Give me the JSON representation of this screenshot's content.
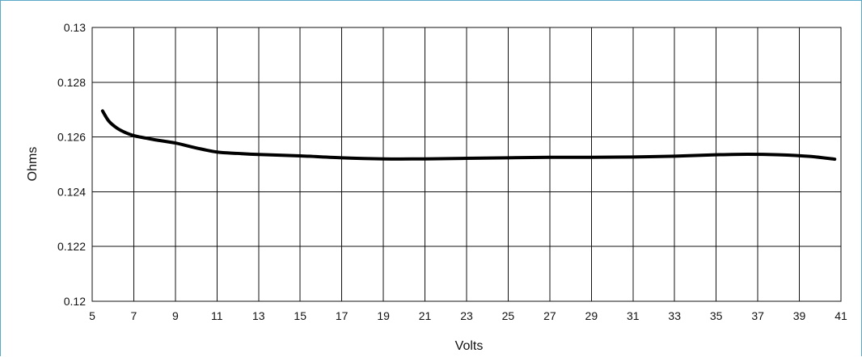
{
  "chart_data": {
    "type": "line",
    "title": "",
    "xlabel": "Volts",
    "ylabel": "Ohms",
    "xlim": [
      5,
      41
    ],
    "ylim": [
      0.12,
      0.13
    ],
    "x_ticks": [
      5,
      7,
      9,
      11,
      13,
      15,
      17,
      19,
      21,
      23,
      25,
      27,
      29,
      31,
      33,
      35,
      37,
      39,
      41
    ],
    "x_tick_labels": [
      "5",
      "7",
      "9",
      "11",
      "13",
      "15",
      "17",
      "19",
      "21",
      "23",
      "25",
      "27",
      "29",
      "31",
      "33",
      "35",
      "37",
      "39",
      "41"
    ],
    "y_ticks": [
      0.12,
      0.122,
      0.124,
      0.126,
      0.128,
      0.13
    ],
    "y_tick_labels": [
      "0.12",
      "0.122",
      "0.124",
      "0.126",
      "0.128",
      "0.13"
    ],
    "grid": true,
    "legend": "none",
    "series": [
      {
        "x": [
          5.5,
          5.8,
          6.2,
          6.6,
          7.0,
          7.5,
          8.0,
          9.0,
          10.0,
          11.0,
          12.0,
          13.0,
          15.0,
          17.0,
          19.0,
          21.0,
          23.0,
          25.0,
          27.0,
          29.0,
          31.0,
          33.0,
          35.0,
          36.5,
          38.0,
          39.5,
          40.7
        ],
        "y": [
          0.12695,
          0.12658,
          0.12632,
          0.12616,
          0.12605,
          0.12597,
          0.1259,
          0.12578,
          0.1256,
          0.12545,
          0.1254,
          0.12536,
          0.12531,
          0.12524,
          0.1252,
          0.1252,
          0.12522,
          0.12524,
          0.12526,
          0.12526,
          0.12527,
          0.1253,
          0.12535,
          0.12537,
          0.12535,
          0.12529,
          0.12519
        ],
        "color": "#000000"
      }
    ]
  }
}
